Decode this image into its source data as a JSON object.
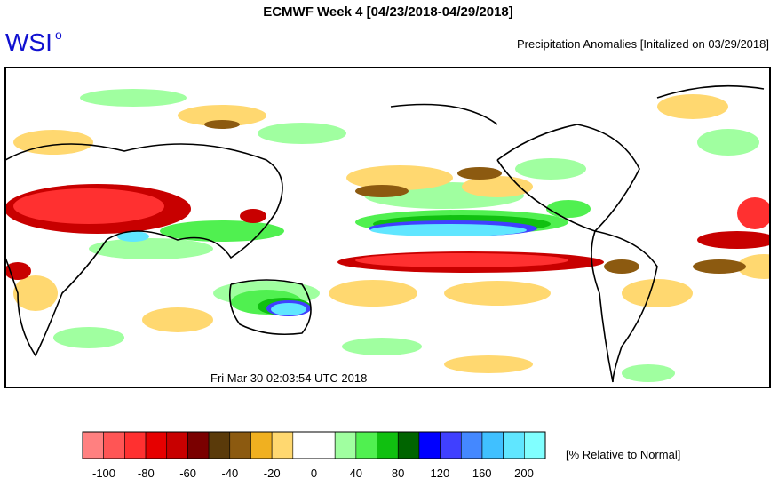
{
  "header": {
    "title": "ECMWF Week 4 [04/23/2018-04/29/2018]",
    "logo": "WSI",
    "logo_mark": "o",
    "subtitle": "Precipitation Anomalies [Initalized on 03/29/2018]"
  },
  "map": {
    "timestamp": "Fri Mar 30 02:03:54 UTC 2018"
  },
  "colorbar": {
    "colors": [
      "#ff8080",
      "#ff5555",
      "#ff3030",
      "#e60000",
      "#c80000",
      "#7a0000",
      "#5a3a0a",
      "#8c5a10",
      "#f0b020",
      "#ffd870",
      "#ffffff",
      "#ffffff",
      "#a0ffa0",
      "#50f050",
      "#10c010",
      "#006400",
      "#0000ff",
      "#4040ff",
      "#4488ff",
      "#40c0ff",
      "#60e6ff",
      "#80ffff"
    ],
    "labels": [
      -100,
      -80,
      -60,
      -40,
      -20,
      0,
      40,
      80,
      120,
      160,
      200
    ],
    "unit": "[% Relative to Normal]"
  }
}
